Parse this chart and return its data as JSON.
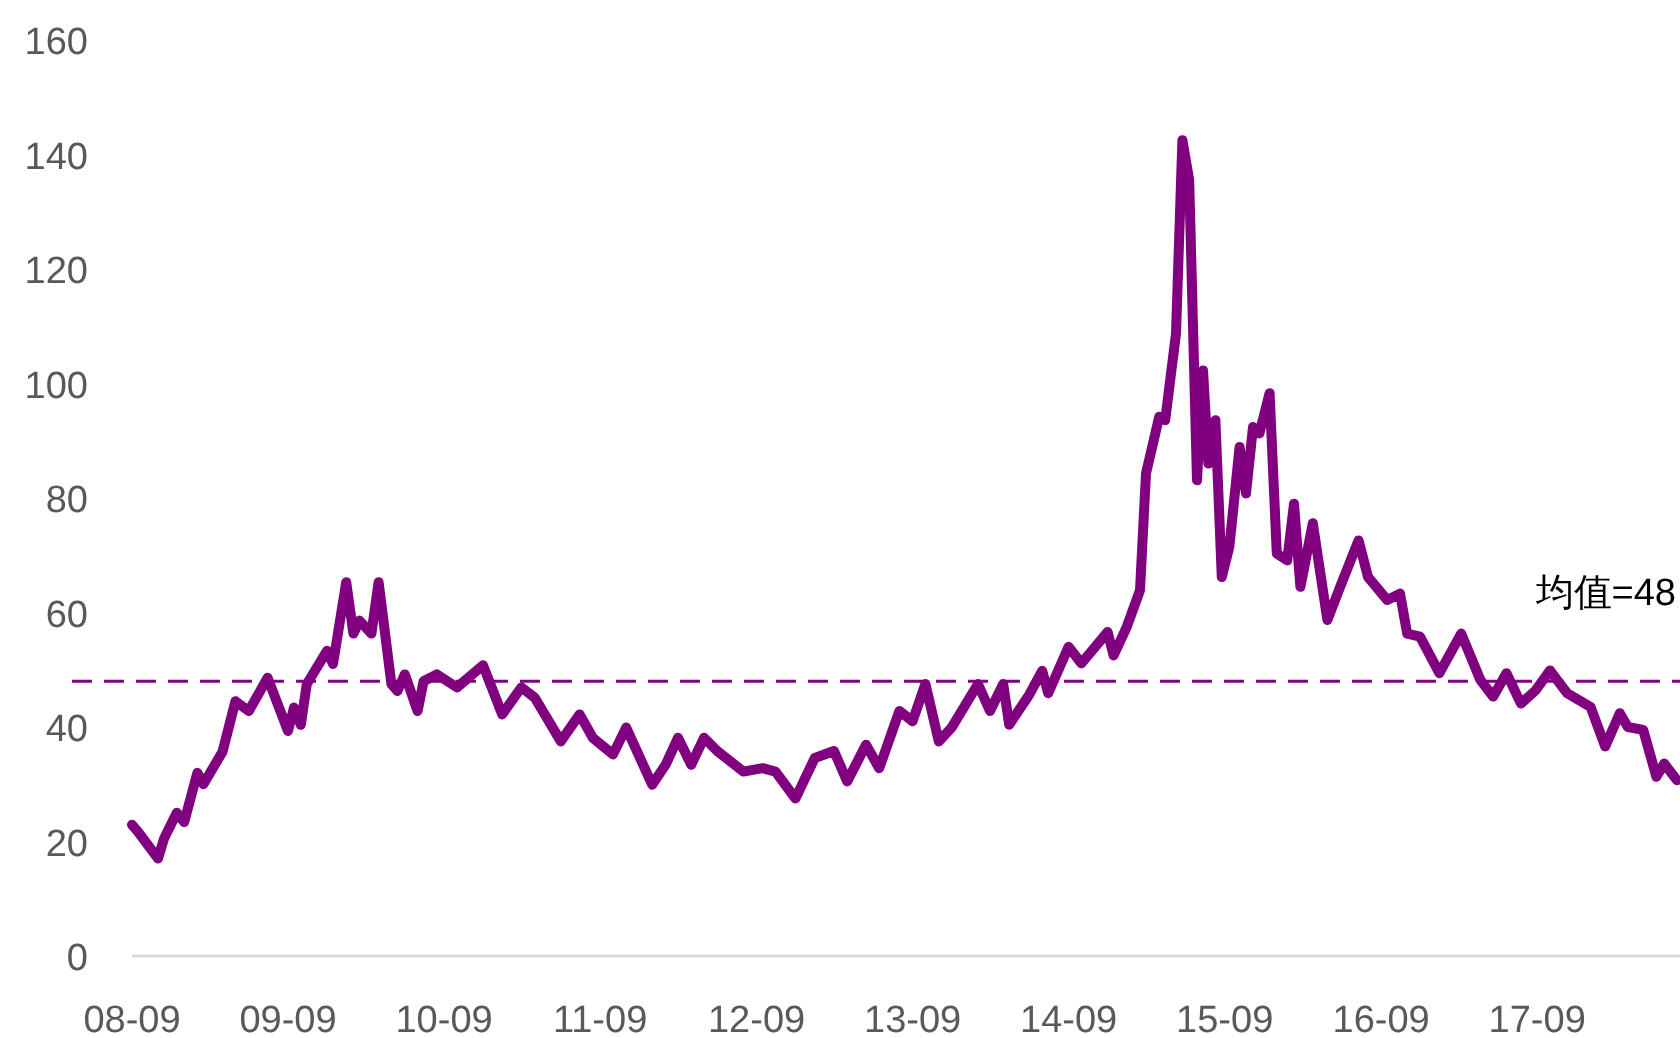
{
  "chart_data": {
    "type": "line",
    "x": [
      "2008-09-01",
      "2008-09-15",
      "2008-11-01",
      "2008-11-15",
      "2008-12-15",
      "2009-01-01",
      "2009-02-01",
      "2009-02-15",
      "2009-04-01",
      "2009-05-01",
      "2009-06-01",
      "2009-07-15",
      "2009-09-01",
      "2009-09-15",
      "2009-10-01",
      "2009-10-15",
      "2009-12-01",
      "2009-12-15",
      "2010-01-15",
      "2010-02-01",
      "2010-02-15",
      "2010-03-15",
      "2010-04-01",
      "2010-05-01",
      "2010-05-15",
      "2010-06-01",
      "2010-07-01",
      "2010-07-15",
      "2010-08-15",
      "2010-10-01",
      "2010-12-01",
      "2011-01-15",
      "2011-03-01",
      "2011-04-01",
      "2011-06-01",
      "2011-07-15",
      "2011-08-15",
      "2011-10-01",
      "2011-11-01",
      "2012-01-01",
      "2012-02-01",
      "2012-03-01",
      "2012-04-01",
      "2012-05-01",
      "2012-06-01",
      "2012-08-01",
      "2012-09-15",
      "2012-10-15",
      "2012-12-01",
      "2013-01-15",
      "2013-03-01",
      "2013-04-01",
      "2013-05-15",
      "2013-06-15",
      "2013-08-01",
      "2013-09-01",
      "2013-10-01",
      "2013-11-01",
      "2013-12-01",
      "2014-02-01",
      "2014-03-01",
      "2014-04-01",
      "2014-04-15",
      "2014-06-01",
      "2014-07-01",
      "2014-07-15",
      "2014-09-01",
      "2014-10-01",
      "2014-12-01",
      "2014-12-15",
      "2015-01-15",
      "2015-02-15",
      "2015-03-01",
      "2015-04-01",
      "2015-04-15",
      "2015-05-10",
      "2015-05-25",
      "2015-06-10",
      "2015-06-28",
      "2015-07-12",
      "2015-07-25",
      "2015-08-10",
      "2015-08-25",
      "2015-09-12",
      "2015-10-06",
      "2015-10-21",
      "2015-11-06",
      "2015-11-21",
      "2015-12-15",
      "2016-01-01",
      "2016-01-25",
      "2016-02-10",
      "2016-02-25",
      "2016-03-25",
      "2016-04-28",
      "2016-05-28",
      "2016-07-10",
      "2016-08-01",
      "2016-09-15",
      "2016-10-15",
      "2016-11-01",
      "2016-12-01",
      "2017-01-15",
      "2017-03-07",
      "2017-04-21",
      "2017-05-21",
      "2017-06-21",
      "2017-07-25",
      "2017-08-28",
      "2017-10-01",
      "2017-11-10",
      "2018-01-04",
      "2018-02-07",
      "2018-03-13",
      "2018-04-01",
      "2018-05-07",
      "2018-06-07",
      "2018-06-25",
      "2018-07-25"
    ],
    "series": [
      {
        "color": "#800080",
        "values": [
          22.9,
          21.7,
          17,
          20.5,
          25,
          23.4,
          32,
          30,
          35.7,
          44.5,
          42.8,
          48.6,
          39.3,
          43.4,
          40.4,
          47.5,
          53.3,
          51,
          65.3,
          56.3,
          58.6,
          56.3,
          65.3,
          47.5,
          46.3,
          49.2,
          42.8,
          48,
          49.2,
          46.9,
          50.8,
          42.2,
          46.9,
          45.1,
          37.5,
          42.2,
          38.1,
          35.2,
          39.9,
          29.9,
          33.4,
          38.1,
          33.4,
          38.1,
          35.8,
          32.2,
          32.8,
          32.2,
          27.5,
          34.6,
          35.8,
          30.5,
          36.9,
          32.8,
          42.8,
          41,
          47.5,
          37.5,
          39.9,
          47.5,
          42.8,
          47.5,
          40.4,
          45.7,
          49.8,
          45.9,
          54,
          51.1,
          56.6,
          52.5,
          57.5,
          63.9,
          84.3,
          94.2,
          93.6,
          108.7,
          142.5,
          135.5,
          83.1,
          102.3,
          86,
          93.6,
          66.2,
          71.5,
          88.9,
          80.8,
          92.4,
          91.3,
          98.3,
          70.3,
          69.1,
          79,
          64.5,
          75.6,
          58.7,
          64.5,
          72.6,
          66.2,
          62.2,
          63.3,
          56.3,
          55.8,
          49.4,
          56.3,
          48.2,
          45.3,
          49.4,
          44.1,
          46.4,
          49.9,
          45.9,
          43.5,
          36.6,
          42.4,
          40,
          39.5,
          31.3,
          33.6,
          30.7
        ]
      }
    ],
    "xlim": [
      "2008-09-01",
      "2018-08-01"
    ],
    "xticks": [
      {
        "value": "2008-09",
        "label": "08-09"
      },
      {
        "value": "2009-09",
        "label": "09-09"
      },
      {
        "value": "2010-09",
        "label": "10-09"
      },
      {
        "value": "2011-09",
        "label": "11-09"
      },
      {
        "value": "2012-09",
        "label": "12-09"
      },
      {
        "value": "2013-09",
        "label": "13-09"
      },
      {
        "value": "2014-09",
        "label": "14-09"
      },
      {
        "value": "2015-09",
        "label": "15-09"
      },
      {
        "value": "2016-09",
        "label": "16-09"
      },
      {
        "value": "2017-09",
        "label": "17-09"
      }
    ],
    "ylim": [
      0,
      160
    ],
    "yticks": [
      0,
      20,
      40,
      60,
      80,
      100,
      120,
      140,
      160
    ],
    "line_style": "solid",
    "ref_lines": [
      {
        "axis": "y",
        "value": 48,
        "label": "均值=48",
        "color": "#800080",
        "line_style": "dashed"
      }
    ]
  }
}
